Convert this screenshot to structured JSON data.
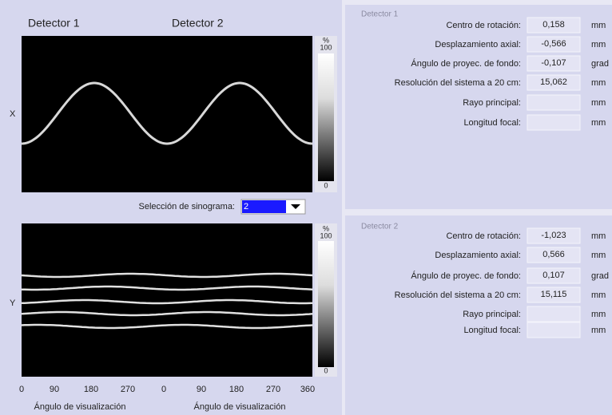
{
  "left_panel": {
    "detector_headers": [
      "Detector 1",
      "Detector 2"
    ],
    "sinogram_x": {
      "axis_label": "X",
      "colorbar": {
        "unit": "%",
        "max": "100",
        "min": "0"
      }
    },
    "selector": {
      "label": "Selección de sinograma:",
      "value": "2"
    },
    "sinogram_y": {
      "axis_label": "Y",
      "colorbar": {
        "unit": "%",
        "max": "100",
        "min": "0"
      }
    },
    "x_axis": {
      "ticks": [
        "0",
        "90",
        "180",
        "270",
        "0",
        "90",
        "180",
        "270",
        "360"
      ],
      "titles": [
        "Ángulo de visualización",
        "Ángulo de visualización"
      ]
    }
  },
  "detectors": [
    {
      "title": "Detector 1",
      "rows": [
        {
          "label": "Centro de rotación:",
          "value": "0,158",
          "unit": "mm"
        },
        {
          "label": "Desplazamiento axial:",
          "value": "-0,566",
          "unit": "mm"
        },
        {
          "label": "Ángulo de proyec. de fondo:",
          "value": "-0,107",
          "unit": "grad"
        },
        {
          "label": "Resolución del sistema a 20 cm:",
          "value": "15,062",
          "unit": "mm"
        },
        {
          "label": "Rayo principal:",
          "unit": "mm"
        },
        {
          "label": "Longitud focal:",
          "unit": "mm"
        }
      ]
    },
    {
      "title": "Detector 2",
      "rows": [
        {
          "label": "Centro de rotación:",
          "value": "-1,023",
          "unit": "mm"
        },
        {
          "label": "Desplazamiento axial:",
          "value": "0,566",
          "unit": "mm"
        },
        {
          "label": "Ángulo de proyec. de fondo:",
          "value": "0,107",
          "unit": "grad"
        },
        {
          "label": "Resolución del sistema a 20 cm:",
          "value": "15,115",
          "unit": "mm"
        },
        {
          "label": "Rayo principal:",
          "unit": "mm"
        },
        {
          "label": "Longitud focal:",
          "unit": "mm"
        }
      ]
    }
  ]
}
